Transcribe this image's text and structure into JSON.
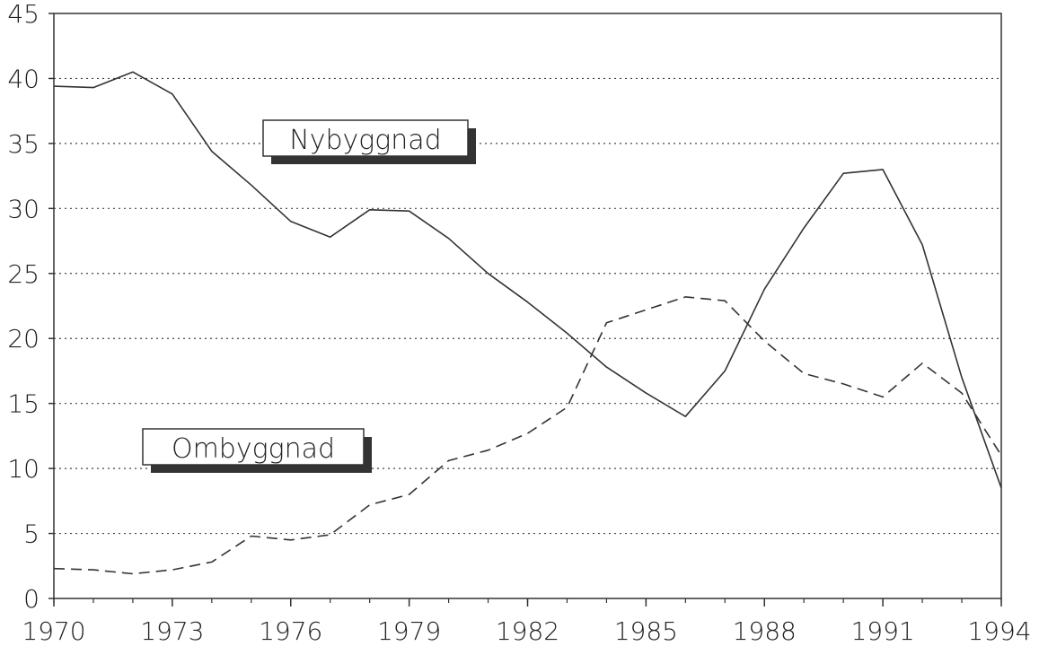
{
  "chart_data": {
    "type": "line",
    "x": [
      1970,
      1971,
      1972,
      1973,
      1974,
      1975,
      1976,
      1977,
      1978,
      1979,
      1980,
      1981,
      1982,
      1983,
      1984,
      1985,
      1986,
      1987,
      1988,
      1989,
      1990,
      1991,
      1992,
      1993,
      1994
    ],
    "x_ticks": [
      "1970",
      "1973",
      "1976",
      "1979",
      "1982",
      "1985",
      "1988",
      "1991",
      "1994"
    ],
    "y_ticks": [
      "0",
      "5",
      "10",
      "15",
      "20",
      "25",
      "30",
      "35",
      "40",
      "45"
    ],
    "xlim": [
      1970,
      1994
    ],
    "ylim": [
      0,
      45
    ],
    "grid": "horizontal dotted",
    "series": [
      {
        "name": "Nybyggnad",
        "style": "solid",
        "color": "#333333",
        "values": [
          39.4,
          39.3,
          40.5,
          38.8,
          34.4,
          31.8,
          29.0,
          27.8,
          29.9,
          29.8,
          27.7,
          25.0,
          22.8,
          20.4,
          17.8,
          15.8,
          14.0,
          17.5,
          23.8,
          28.5,
          32.7,
          33.0,
          27.2,
          17.0,
          8.5
        ]
      },
      {
        "name": "Ombyggnad",
        "style": "dashed",
        "color": "#333333",
        "values": [
          2.3,
          2.2,
          1.9,
          2.2,
          2.8,
          4.8,
          4.5,
          4.9,
          7.2,
          8.0,
          10.6,
          11.4,
          12.7,
          14.7,
          21.2,
          22.2,
          23.2,
          22.9,
          19.8,
          17.3,
          16.5,
          15.5,
          18.1,
          15.8,
          11.0
        ]
      }
    ]
  }
}
